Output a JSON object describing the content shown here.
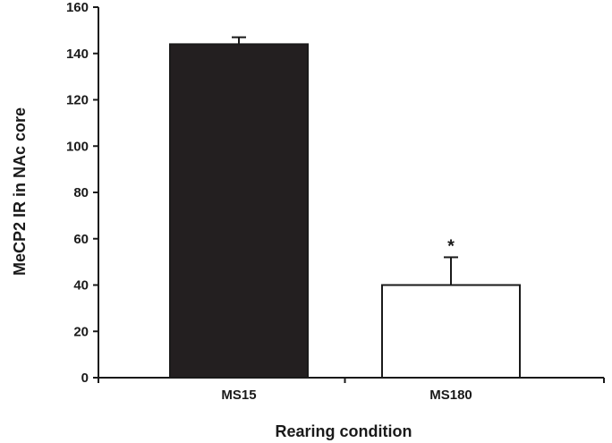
{
  "chart_data": {
    "type": "bar",
    "title": "",
    "xlabel": "Rearing condition",
    "ylabel": "MeCP2 IR in NAc core",
    "ylim": [
      0,
      160
    ],
    "yticks": [
      0,
      20,
      40,
      60,
      80,
      100,
      120,
      140,
      160
    ],
    "categories": [
      "MS15",
      "MS180"
    ],
    "values": [
      144,
      40
    ],
    "errors": [
      3,
      12
    ],
    "bar_colors": [
      "#231f20",
      "#ffffff"
    ],
    "annotations": [
      {
        "category": "MS180",
        "text": "*"
      }
    ],
    "grid": false,
    "legend": "none"
  }
}
